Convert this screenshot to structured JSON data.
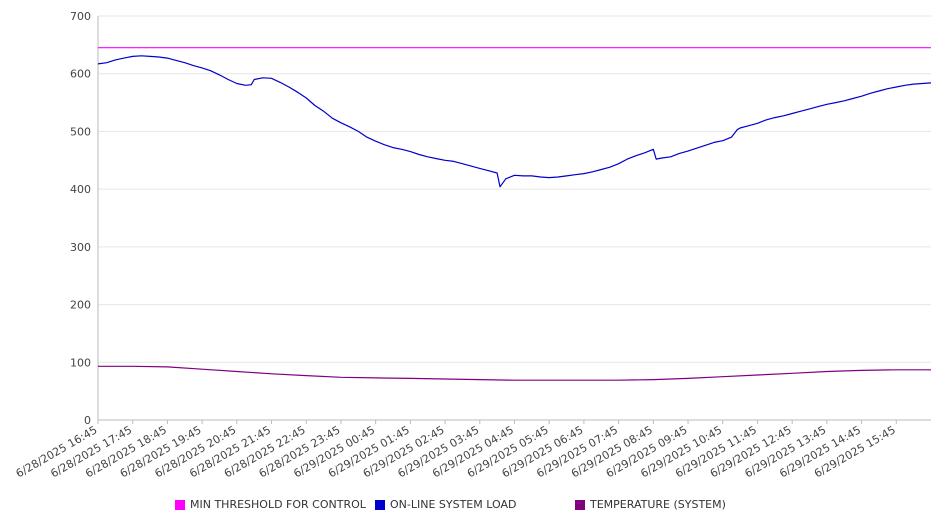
{
  "chart_data": {
    "type": "line",
    "title": "",
    "xlabel": "",
    "ylabel": "",
    "ylim": [
      0,
      700
    ],
    "yticks": [
      0,
      100,
      200,
      300,
      400,
      500,
      600,
      700
    ],
    "grid": true,
    "legend_position": "bottom",
    "x_tick_labels": [
      "6/28/2025 16:45",
      "6/28/2025 17:45",
      "6/28/2025 18:45",
      "6/28/2025 19:45",
      "6/28/2025 20:45",
      "6/28/2025 21:45",
      "6/28/2025 22:45",
      "6/28/2025 23:45",
      "6/29/2025 00:45",
      "6/29/2025 01:45",
      "6/29/2025 02:45",
      "6/29/2025 03:45",
      "6/29/2025 04:45",
      "6/29/2025 05:45",
      "6/29/2025 06:45",
      "6/29/2025 07:45",
      "6/29/2025 08:45",
      "6/29/2025 09:45",
      "6/29/2025 10:45",
      "6/29/2025 11:45",
      "6/29/2025 12:45",
      "6/29/2025 13:45",
      "6/29/2025 14:45",
      "6/29/2025 15:45"
    ],
    "x_range": [
      "6/28/2025 16:45",
      "6/29/2025 16:45"
    ],
    "series": [
      {
        "name": "MIN THRESHOLD FOR CONTROL",
        "color": "#ff00ff",
        "points": [
          [
            "6/28/2025 16:45",
            645
          ],
          [
            "6/29/2025 16:45",
            645
          ]
        ]
      },
      {
        "name": "ON-LINE SYSTEM LOAD",
        "color": "#0000cc",
        "points": [
          [
            "6/28/2025 16:45",
            617
          ],
          [
            "6/28/2025 17:00",
            619
          ],
          [
            "6/28/2025 17:15",
            624
          ],
          [
            "6/28/2025 17:30",
            627
          ],
          [
            "6/28/2025 17:45",
            630
          ],
          [
            "6/28/2025 18:00",
            631
          ],
          [
            "6/28/2025 18:15",
            630
          ],
          [
            "6/28/2025 18:30",
            629
          ],
          [
            "6/28/2025 18:45",
            627
          ],
          [
            "6/28/2025 19:00",
            623
          ],
          [
            "6/28/2025 19:15",
            619
          ],
          [
            "6/28/2025 19:30",
            614
          ],
          [
            "6/28/2025 19:45",
            610
          ],
          [
            "6/28/2025 20:00",
            605
          ],
          [
            "6/28/2025 20:15",
            598
          ],
          [
            "6/28/2025 20:30",
            590
          ],
          [
            "6/28/2025 20:45",
            583
          ],
          [
            "6/28/2025 21:00",
            580
          ],
          [
            "6/28/2025 21:10",
            581
          ],
          [
            "6/28/2025 21:15",
            590
          ],
          [
            "6/28/2025 21:30",
            593
          ],
          [
            "6/28/2025 21:45",
            592
          ],
          [
            "6/28/2025 22:00",
            585
          ],
          [
            "6/28/2025 22:15",
            577
          ],
          [
            "6/28/2025 22:30",
            568
          ],
          [
            "6/28/2025 22:45",
            558
          ],
          [
            "6/28/2025 23:00",
            545
          ],
          [
            "6/28/2025 23:15",
            535
          ],
          [
            "6/28/2025 23:30",
            523
          ],
          [
            "6/28/2025 23:45",
            515
          ],
          [
            "6/29/2025 00:00",
            508
          ],
          [
            "6/29/2025 00:15",
            500
          ],
          [
            "6/29/2025 00:30",
            490
          ],
          [
            "6/29/2025 00:45",
            483
          ],
          [
            "6/29/2025 01:00",
            477
          ],
          [
            "6/29/2025 01:15",
            472
          ],
          [
            "6/29/2025 01:30",
            469
          ],
          [
            "6/29/2025 01:45",
            465
          ],
          [
            "6/29/2025 02:00",
            460
          ],
          [
            "6/29/2025 02:15",
            456
          ],
          [
            "6/29/2025 02:30",
            453
          ],
          [
            "6/29/2025 02:45",
            450
          ],
          [
            "6/29/2025 03:00",
            448
          ],
          [
            "6/29/2025 03:15",
            444
          ],
          [
            "6/29/2025 03:30",
            440
          ],
          [
            "6/29/2025 03:45",
            436
          ],
          [
            "6/29/2025 04:00",
            432
          ],
          [
            "6/29/2025 04:15",
            428
          ],
          [
            "6/29/2025 04:20",
            404
          ],
          [
            "6/29/2025 04:30",
            418
          ],
          [
            "6/29/2025 04:45",
            424
          ],
          [
            "6/29/2025 05:00",
            423
          ],
          [
            "6/29/2025 05:15",
            423
          ],
          [
            "6/29/2025 05:30",
            421
          ],
          [
            "6/29/2025 05:45",
            420
          ],
          [
            "6/29/2025 06:00",
            421
          ],
          [
            "6/29/2025 06:15",
            423
          ],
          [
            "6/29/2025 06:30",
            425
          ],
          [
            "6/29/2025 06:45",
            427
          ],
          [
            "6/29/2025 07:00",
            430
          ],
          [
            "6/29/2025 07:15",
            434
          ],
          [
            "6/29/2025 07:30",
            438
          ],
          [
            "6/29/2025 07:45",
            444
          ],
          [
            "6/29/2025 08:00",
            452
          ],
          [
            "6/29/2025 08:15",
            458
          ],
          [
            "6/29/2025 08:30",
            463
          ],
          [
            "6/29/2025 08:45",
            469
          ],
          [
            "6/29/2025 08:50",
            452
          ],
          [
            "6/29/2025 09:00",
            454
          ],
          [
            "6/29/2025 09:15",
            456
          ],
          [
            "6/29/2025 09:30",
            462
          ],
          [
            "6/29/2025 09:45",
            466
          ],
          [
            "6/29/2025 10:00",
            471
          ],
          [
            "6/29/2025 10:15",
            476
          ],
          [
            "6/29/2025 10:30",
            481
          ],
          [
            "6/29/2025 10:45",
            484
          ],
          [
            "6/29/2025 11:00",
            490
          ],
          [
            "6/29/2025 11:10",
            503
          ],
          [
            "6/29/2025 11:15",
            506
          ],
          [
            "6/29/2025 11:30",
            510
          ],
          [
            "6/29/2025 11:45",
            514
          ],
          [
            "6/29/2025 12:00",
            520
          ],
          [
            "6/29/2025 12:15",
            524
          ],
          [
            "6/29/2025 12:30",
            527
          ],
          [
            "6/29/2025 12:45",
            531
          ],
          [
            "6/29/2025 13:00",
            535
          ],
          [
            "6/29/2025 13:15",
            539
          ],
          [
            "6/29/2025 13:30",
            543
          ],
          [
            "6/29/2025 13:45",
            547
          ],
          [
            "6/29/2025 14:00",
            550
          ],
          [
            "6/29/2025 14:15",
            553
          ],
          [
            "6/29/2025 14:30",
            557
          ],
          [
            "6/29/2025 14:45",
            561
          ],
          [
            "6/29/2025 15:00",
            566
          ],
          [
            "6/29/2025 15:15",
            570
          ],
          [
            "6/29/2025 15:30",
            574
          ],
          [
            "6/29/2025 15:45",
            577
          ],
          [
            "6/29/2025 16:00",
            580
          ],
          [
            "6/29/2025 16:15",
            582
          ],
          [
            "6/29/2025 16:45",
            584
          ]
        ]
      },
      {
        "name": "TEMPERATURE (SYSTEM)",
        "color": "#800080",
        "points": [
          [
            "6/28/2025 16:45",
            93
          ],
          [
            "6/28/2025 17:45",
            93
          ],
          [
            "6/28/2025 18:45",
            92
          ],
          [
            "6/28/2025 19:45",
            88
          ],
          [
            "6/28/2025 20:45",
            84
          ],
          [
            "6/28/2025 21:45",
            80
          ],
          [
            "6/28/2025 22:45",
            77
          ],
          [
            "6/28/2025 23:45",
            74
          ],
          [
            "6/29/2025 00:45",
            73
          ],
          [
            "6/29/2025 01:45",
            72
          ],
          [
            "6/29/2025 02:45",
            71
          ],
          [
            "6/29/2025 03:45",
            70
          ],
          [
            "6/29/2025 04:45",
            69
          ],
          [
            "6/29/2025 05:45",
            69
          ],
          [
            "6/29/2025 06:45",
            69
          ],
          [
            "6/29/2025 07:45",
            69
          ],
          [
            "6/29/2025 08:45",
            70
          ],
          [
            "6/29/2025 09:45",
            72
          ],
          [
            "6/29/2025 10:45",
            75
          ],
          [
            "6/29/2025 11:45",
            78
          ],
          [
            "6/29/2025 12:45",
            81
          ],
          [
            "6/29/2025 13:45",
            84
          ],
          [
            "6/29/2025 14:45",
            86
          ],
          [
            "6/29/2025 15:45",
            87
          ],
          [
            "6/29/2025 16:45",
            87
          ]
        ]
      }
    ]
  }
}
